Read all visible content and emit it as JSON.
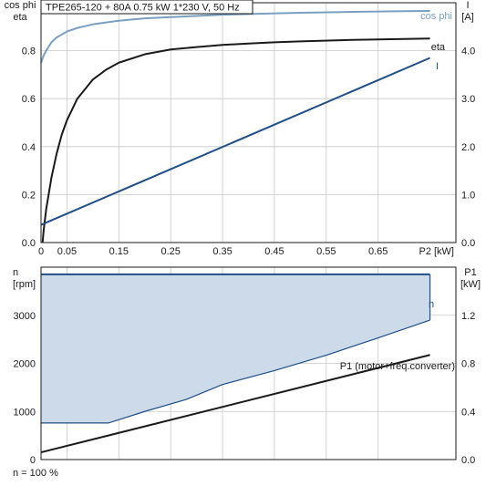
{
  "chart_data": [
    {
      "type": "line",
      "header": "TPE265-120 + 80A   0.75 kW   1*230 V, 50 Hz",
      "xlabel": "P2 [kW]",
      "ylabel_left": [
        "cos phi",
        "eta"
      ],
      "ylabel_right": [
        "I",
        "[A]"
      ],
      "xlim": [
        0,
        0.8
      ],
      "ylim_left": [
        0,
        1.0
      ],
      "ylim_right": [
        0,
        5.0
      ],
      "x_ticks": [
        "0",
        "0.05",
        "0.15",
        "0.25",
        "0.35",
        "0.45",
        "0.55",
        "0.65"
      ],
      "x_tick_values": [
        0,
        0.05,
        0.15,
        0.25,
        0.35,
        0.45,
        0.55,
        0.65
      ],
      "y_ticks_left": [
        "0.0",
        "0.2",
        "0.4",
        "0.6",
        "0.8"
      ],
      "y_tick_values_left": [
        0,
        0.2,
        0.4,
        0.6,
        0.8
      ],
      "y_ticks_right": [
        "0.0",
        "1.0",
        "2.0",
        "3.0",
        "4.0"
      ],
      "y_tick_values_right": [
        0,
        1,
        2,
        3,
        4
      ],
      "grid": true,
      "series": [
        {
          "name": "cos phi",
          "axis": "left",
          "color": "#7b9fc0",
          "x": [
            0,
            0.005,
            0.01,
            0.02,
            0.03,
            0.05,
            0.07,
            0.1,
            0.15,
            0.2,
            0.25,
            0.3,
            0.35,
            0.4,
            0.5,
            0.6,
            0.7,
            0.75
          ],
          "y": [
            0.75,
            0.78,
            0.8,
            0.835,
            0.855,
            0.88,
            0.895,
            0.91,
            0.925,
            0.935,
            0.94,
            0.945,
            0.95,
            0.953,
            0.958,
            0.962,
            0.965,
            0.966
          ]
        },
        {
          "name": "eta",
          "axis": "left",
          "color": "#1a1a1a",
          "x": [
            0.003,
            0.005,
            0.01,
            0.02,
            0.03,
            0.04,
            0.05,
            0.07,
            0.1,
            0.125,
            0.15,
            0.2,
            0.25,
            0.3,
            0.35,
            0.4,
            0.45,
            0.5,
            0.6,
            0.7,
            0.75
          ],
          "y": [
            0.0,
            0.05,
            0.14,
            0.27,
            0.37,
            0.45,
            0.51,
            0.6,
            0.68,
            0.72,
            0.75,
            0.785,
            0.805,
            0.815,
            0.824,
            0.83,
            0.835,
            0.839,
            0.845,
            0.849,
            0.851
          ]
        },
        {
          "name": "I",
          "axis": "right",
          "color": "#1f4f86",
          "x": [
            0,
            0.75
          ],
          "y": [
            0.37,
            3.85
          ]
        }
      ]
    },
    {
      "type": "area",
      "footer": "n = 100 %",
      "ylabel_left": [
        "n",
        "[rpm]"
      ],
      "ylabel_right": [
        "P1",
        "[kW]"
      ],
      "xlim": [
        0,
        0.8
      ],
      "ylim_left": [
        0,
        4000
      ],
      "ylim_right": [
        0,
        1.6
      ],
      "y_ticks_left": [
        "0",
        "1000",
        "2000",
        "3000"
      ],
      "y_tick_values_left": [
        0,
        1000,
        2000,
        3000
      ],
      "y_ticks_right": [
        "0.0",
        "0.4",
        "0.8",
        "1.2"
      ],
      "y_tick_values_right": [
        0,
        0.4,
        0.8,
        1.2
      ],
      "x_tick_values": [
        0,
        0.05,
        0.15,
        0.25,
        0.35,
        0.45,
        0.55,
        0.65
      ],
      "grid": true,
      "fill_color": "#ccdae9",
      "series": [
        {
          "name": "n",
          "axis": "left",
          "color": "#1f4f86",
          "x": [
            0,
            0.75
          ],
          "y": [
            3850,
            3850
          ]
        },
        {
          "name": "",
          "role": "lower-boundary",
          "axis": "left",
          "color": "#1f4f86",
          "x": [
            0,
            0.13,
            0.2,
            0.28,
            0.35,
            0.45,
            0.55,
            0.65,
            0.75
          ],
          "y": [
            760,
            760,
            1000,
            1250,
            1560,
            1850,
            2170,
            2530,
            2900
          ]
        },
        {
          "name": "P1 (motor+freq.converter)",
          "axis": "right",
          "color": "#1a1a1a",
          "x": [
            0,
            0.75
          ],
          "y": [
            0.06,
            0.87
          ]
        }
      ]
    }
  ]
}
